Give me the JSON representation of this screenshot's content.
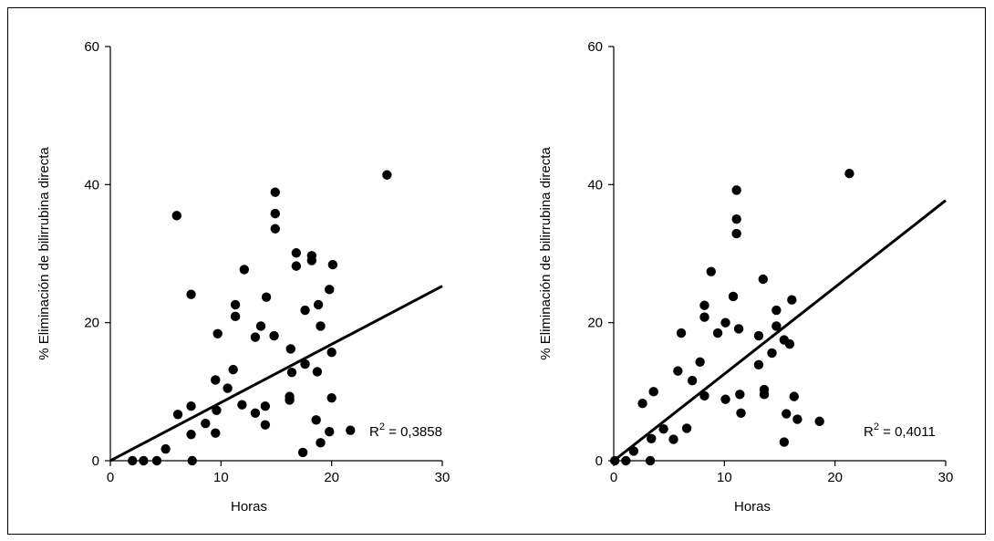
{
  "chart_data": [
    {
      "type": "scatter",
      "xlabel": "Horas",
      "ylabel": "% Eliminación de bilirrubina directa",
      "xlim": [
        0,
        30
      ],
      "ylim": [
        0,
        60
      ],
      "xticks": [
        "0",
        "10",
        "20",
        "30"
      ],
      "yticks": [
        "0",
        "20",
        "40",
        "60"
      ],
      "annotation": {
        "prefix": "R",
        "sup": "2",
        "value": " = 0,3858"
      },
      "trendline": {
        "x": [
          0,
          30
        ],
        "y": [
          0,
          25.3
        ]
      },
      "points": [
        [
          2,
          0
        ],
        [
          3,
          0
        ],
        [
          4.2,
          0
        ],
        [
          7.4,
          0
        ],
        [
          17.4,
          1.2
        ],
        [
          5,
          1.7
        ],
        [
          19,
          2.6
        ],
        [
          7.3,
          3.8
        ],
        [
          9.5,
          4
        ],
        [
          19.8,
          4.2
        ],
        [
          21.7,
          4.4
        ],
        [
          14,
          5.2
        ],
        [
          8.6,
          5.4
        ],
        [
          18.6,
          5.9
        ],
        [
          6.1,
          6.7
        ],
        [
          13.1,
          6.9
        ],
        [
          9.6,
          7.3
        ],
        [
          7.3,
          7.9
        ],
        [
          14,
          7.9
        ],
        [
          11.9,
          8.1
        ],
        [
          16.2,
          8.8
        ],
        [
          16.2,
          9.3
        ],
        [
          20,
          9.1
        ],
        [
          10.6,
          10.5
        ],
        [
          9.5,
          11.7
        ],
        [
          16.4,
          12.8
        ],
        [
          18.7,
          12.9
        ],
        [
          11.1,
          13.2
        ],
        [
          17.6,
          14
        ],
        [
          20,
          15.7
        ],
        [
          16.3,
          16.2
        ],
        [
          13.1,
          17.9
        ],
        [
          14.8,
          18.1
        ],
        [
          9.7,
          18.4
        ],
        [
          19,
          19.5
        ],
        [
          13.6,
          19.5
        ],
        [
          11.3,
          20.9
        ],
        [
          17.6,
          21.8
        ],
        [
          18.8,
          22.6
        ],
        [
          11.3,
          22.6
        ],
        [
          14.1,
          23.7
        ],
        [
          7.3,
          24.1
        ],
        [
          19.8,
          24.8
        ],
        [
          12.1,
          27.7
        ],
        [
          16.8,
          28.2
        ],
        [
          20.1,
          28.4
        ],
        [
          18.2,
          29
        ],
        [
          18.2,
          29.7
        ],
        [
          16.8,
          30.1
        ],
        [
          14.9,
          33.6
        ],
        [
          14.9,
          35.8
        ],
        [
          6,
          35.5
        ],
        [
          14.9,
          38.9
        ],
        [
          25,
          41.4
        ]
      ]
    },
    {
      "type": "scatter",
      "xlabel": "Horas",
      "ylabel": "% Eliminación de bilirrubina directa",
      "xlim": [
        0,
        30
      ],
      "ylim": [
        0,
        60
      ],
      "xticks": [
        "0",
        "10",
        "20",
        "30"
      ],
      "yticks": [
        "0",
        "20",
        "40",
        "60"
      ],
      "annotation": {
        "prefix": "R",
        "sup": "2",
        "value": " = 0,4011"
      },
      "trendline": {
        "x": [
          0,
          30
        ],
        "y": [
          0,
          37.7
        ]
      },
      "points": [
        [
          0.1,
          0
        ],
        [
          1.1,
          0
        ],
        [
          3.3,
          0
        ],
        [
          1.8,
          1.4
        ],
        [
          15.4,
          2.7
        ],
        [
          5.4,
          3.1
        ],
        [
          3.4,
          3.2
        ],
        [
          4.5,
          4.6
        ],
        [
          6.6,
          4.7
        ],
        [
          16.6,
          6
        ],
        [
          18.6,
          5.7
        ],
        [
          11.5,
          6.9
        ],
        [
          15.6,
          6.8
        ],
        [
          10.1,
          8.9
        ],
        [
          2.6,
          8.3
        ],
        [
          8.2,
          9.4
        ],
        [
          16.3,
          9.3
        ],
        [
          13.6,
          9.6
        ],
        [
          11.4,
          9.6
        ],
        [
          3.6,
          10
        ],
        [
          13.6,
          10.3
        ],
        [
          7.1,
          11.6
        ],
        [
          5.8,
          13
        ],
        [
          13.1,
          13.9
        ],
        [
          7.8,
          14.3
        ],
        [
          14.3,
          15.6
        ],
        [
          15.9,
          16.9
        ],
        [
          15.4,
          17.5
        ],
        [
          6.1,
          18.5
        ],
        [
          13.1,
          18.1
        ],
        [
          9.4,
          18.5
        ],
        [
          11.3,
          19.1
        ],
        [
          14.7,
          19.5
        ],
        [
          10.1,
          20
        ],
        [
          8.2,
          20.8
        ],
        [
          14.7,
          21.8
        ],
        [
          8.2,
          22.5
        ],
        [
          16.1,
          23.3
        ],
        [
          10.8,
          23.8
        ],
        [
          13.5,
          26.3
        ],
        [
          8.8,
          27.4
        ],
        [
          11.1,
          32.9
        ],
        [
          11.1,
          35
        ],
        [
          11.1,
          39.2
        ],
        [
          21.3,
          41.6
        ]
      ]
    }
  ]
}
